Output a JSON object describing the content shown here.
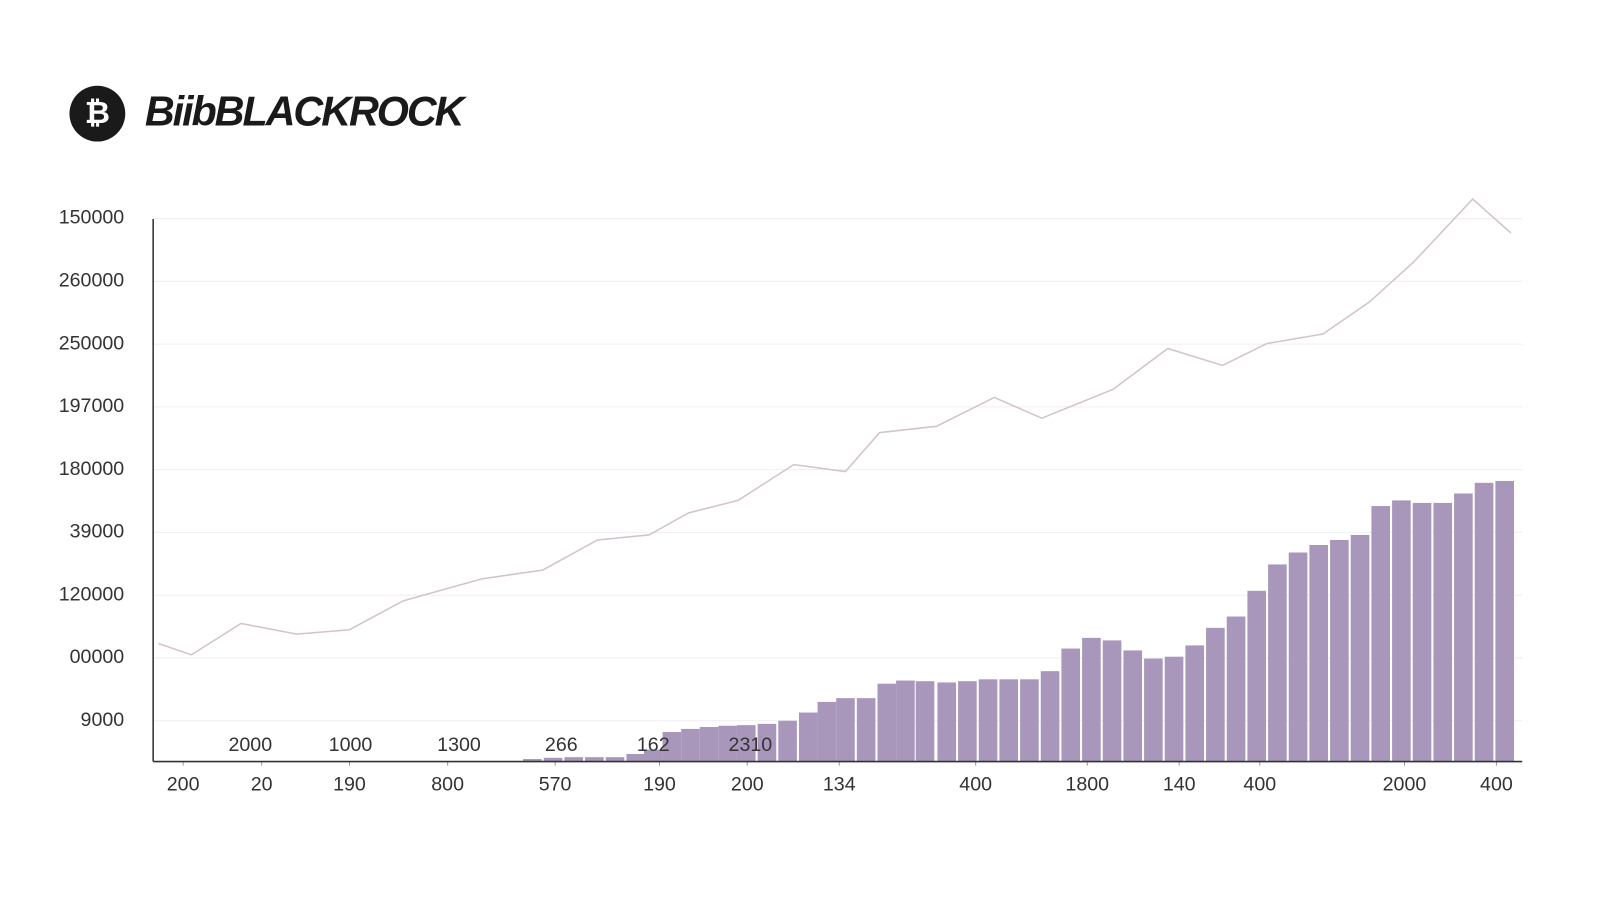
{
  "chart_data": {
    "type": "combo",
    "logo_symbol": "₿",
    "title": "BiibBLACKROCK",
    "x": [],
    "xlim": [
      0,
      1325
    ],
    "ylim": [
      -0.65,
      8.4
    ],
    "yticks": [
      {
        "value": 0,
        "label": "9000"
      },
      {
        "value": 1,
        "label": "00000"
      },
      {
        "value": 2,
        "label": "120000"
      },
      {
        "value": 3,
        "label": "39000"
      },
      {
        "value": 4,
        "label": "180000"
      },
      {
        "value": 5,
        "label": "197000"
      },
      {
        "value": 6,
        "label": "250000"
      },
      {
        "value": 7,
        "label": "260000"
      },
      {
        "value": 8,
        "label": "150000"
      }
    ],
    "xticks": [
      {
        "value": 29,
        "label": "200"
      },
      {
        "value": 105,
        "label": "20"
      },
      {
        "value": 190,
        "label": "190"
      },
      {
        "value": 285,
        "label": "800"
      },
      {
        "value": 389,
        "label": "570"
      },
      {
        "value": 490,
        "label": "190"
      },
      {
        "value": 575,
        "label": "200"
      },
      {
        "value": 664,
        "label": "134"
      },
      {
        "value": 796,
        "label": "400"
      },
      {
        "value": 904,
        "label": "1800"
      },
      {
        "value": 993,
        "label": "140"
      },
      {
        "value": 1071,
        "label": "400"
      },
      {
        "value": 1211,
        "label": "2000"
      },
      {
        "value": 1300,
        "label": "400"
      }
    ],
    "grid": true,
    "annotations": [
      "2000",
      "1000",
      "1300",
      "266",
      "162",
      "2310"
    ],
    "series": [
      {
        "type": "bar",
        "color": "#a897bb",
        "x": [
          367,
          387,
          407,
          427,
          447,
          467,
          484,
          502,
          520,
          538,
          556,
          574,
          594,
          614,
          634,
          652,
          670,
          690,
          710,
          728,
          747,
          768,
          788,
          808,
          828,
          848,
          868,
          888,
          908,
          928,
          948,
          968,
          988,
          1008,
          1028,
          1048,
          1068,
          1088,
          1108,
          1128,
          1148,
          1168,
          1188,
          1208,
          1228,
          1248,
          1268,
          1288,
          1308
        ],
        "values": [
          -0.61,
          -0.59,
          -0.58,
          -0.58,
          -0.58,
          -0.53,
          -0.46,
          -0.18,
          -0.13,
          -0.1,
          -0.08,
          -0.07,
          -0.05,
          0,
          0.13,
          0.3,
          0.36,
          0.36,
          0.59,
          0.64,
          0.63,
          0.61,
          0.63,
          0.66,
          0.66,
          0.66,
          0.79,
          1.15,
          1.32,
          1.28,
          1.12,
          0.99,
          1.02,
          1.2,
          1.48,
          1.66,
          2.07,
          2.49,
          2.68,
          2.8,
          2.88,
          2.96,
          3.42,
          3.51,
          3.47,
          3.47,
          3.62,
          3.79,
          3.82
        ]
      },
      {
        "type": "line",
        "color": "#d3c3cd",
        "x": [
          5,
          37,
          85,
          139,
          190,
          242,
          318,
          377,
          430,
          480,
          518,
          566,
          620,
          670,
          703,
          758,
          814,
          860,
          929,
          982,
          1035,
          1078,
          1132,
          1177,
          1220,
          1277,
          1314
        ],
        "values": [
          1.23,
          1.05,
          1.55,
          1.38,
          1.45,
          1.91,
          2.26,
          2.4,
          2.88,
          2.96,
          3.31,
          3.51,
          4.08,
          3.97,
          4.59,
          4.69,
          5.15,
          4.82,
          5.28,
          5.93,
          5.66,
          6.01,
          6.16,
          6.67,
          7.31,
          8.31,
          7.77
        ]
      }
    ]
  }
}
